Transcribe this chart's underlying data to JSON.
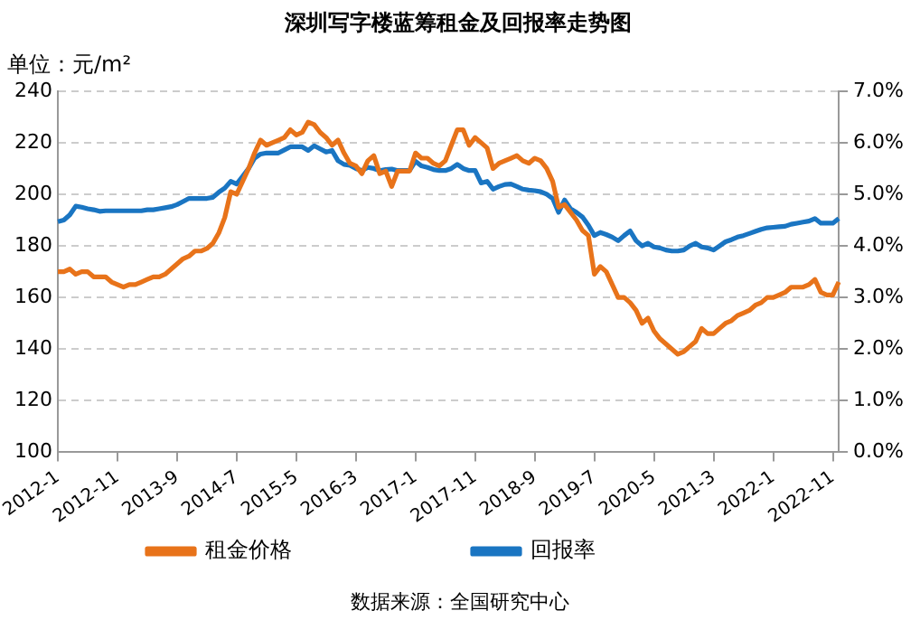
{
  "chart_data": {
    "type": "line",
    "title": "深圳写字楼蓝筹租金及回报率走势图",
    "ylabel": "单位：元/m²",
    "annotations": [
      "数据来源：全国研究中心"
    ],
    "categories": [
      "2012-1",
      null,
      null,
      null,
      null,
      null,
      null,
      null,
      null,
      null,
      "2012-11",
      null,
      null,
      null,
      null,
      null,
      null,
      null,
      null,
      null,
      "2013-9",
      null,
      null,
      null,
      null,
      null,
      null,
      null,
      null,
      null,
      "2014-7",
      null,
      null,
      null,
      null,
      null,
      null,
      null,
      null,
      null,
      "2015-5",
      null,
      null,
      null,
      null,
      null,
      null,
      null,
      null,
      null,
      "2016-3",
      null,
      null,
      null,
      null,
      null,
      null,
      null,
      null,
      null,
      "2017-1",
      null,
      null,
      null,
      null,
      null,
      null,
      null,
      null,
      null,
      "2017-11",
      null,
      null,
      null,
      null,
      null,
      null,
      null,
      null,
      null,
      "2018-9",
      null,
      null,
      null,
      null,
      null,
      null,
      null,
      null,
      null,
      "2019-7",
      null,
      null,
      null,
      null,
      null,
      null,
      null,
      null,
      null,
      "2020-5",
      null,
      null,
      null,
      null,
      null,
      null,
      null,
      null,
      null,
      "2021-3",
      null,
      null,
      null,
      null,
      null,
      null,
      null,
      null,
      null,
      "2022-1",
      null,
      null,
      null,
      null,
      null,
      null,
      null,
      null,
      null,
      "2022-11",
      null
    ],
    "series": [
      {
        "name": "租金价格",
        "color": "#e8731a",
        "values": [
          170,
          170,
          171,
          169,
          170,
          170,
          168,
          168,
          168,
          166,
          165,
          164,
          165,
          165,
          166,
          167,
          168,
          168,
          169,
          171,
          173,
          175,
          176,
          178,
          178,
          179,
          181,
          185,
          191,
          201,
          200,
          205,
          210,
          216,
          221,
          219,
          220,
          221,
          222,
          225,
          223,
          224,
          228,
          227,
          224,
          222,
          219,
          221,
          216,
          212,
          211,
          208,
          213,
          215,
          208,
          209,
          203,
          209,
          209,
          209,
          216,
          214,
          214,
          212,
          211,
          213,
          219,
          225,
          225,
          219,
          222,
          220,
          218,
          210,
          212,
          213,
          214,
          215,
          213,
          212,
          214,
          213,
          210,
          205,
          195,
          196,
          193,
          190,
          186,
          184,
          169,
          172,
          170,
          165,
          160,
          160,
          158,
          155,
          150,
          152,
          147,
          144,
          142,
          140,
          138,
          139,
          141,
          143,
          148,
          146,
          146,
          148,
          150,
          151,
          153,
          154,
          155,
          157,
          158,
          160,
          160,
          161,
          162,
          164,
          164,
          164,
          165,
          167,
          162,
          161,
          161,
          166
        ]
      },
      {
        "name": "回报率",
        "color": "#1a75c2",
        "axis": "y2",
        "values": [
          4.47,
          4.5,
          4.6,
          4.77,
          4.75,
          4.72,
          4.7,
          4.67,
          4.68,
          4.68,
          4.68,
          4.68,
          4.68,
          4.68,
          4.68,
          4.7,
          4.7,
          4.72,
          4.74,
          4.76,
          4.8,
          4.86,
          4.92,
          4.92,
          4.92,
          4.92,
          4.94,
          5.04,
          5.12,
          5.25,
          5.2,
          5.35,
          5.5,
          5.7,
          5.78,
          5.8,
          5.8,
          5.8,
          5.86,
          5.92,
          5.92,
          5.92,
          5.85,
          5.94,
          5.88,
          5.82,
          5.85,
          5.65,
          5.58,
          5.56,
          5.5,
          5.46,
          5.52,
          5.5,
          5.46,
          5.48,
          5.49,
          5.46,
          5.46,
          5.46,
          5.64,
          5.55,
          5.52,
          5.48,
          5.46,
          5.46,
          5.5,
          5.58,
          5.5,
          5.46,
          5.46,
          5.22,
          5.25,
          5.1,
          5.15,
          5.19,
          5.2,
          5.15,
          5.1,
          5.08,
          5.07,
          5.05,
          5.0,
          4.92,
          4.65,
          4.89,
          4.72,
          4.65,
          4.56,
          4.4,
          4.2,
          4.26,
          4.22,
          4.17,
          4.1,
          4.2,
          4.29,
          4.1,
          4.0,
          4.05,
          3.98,
          3.96,
          3.92,
          3.9,
          3.9,
          3.92,
          4.0,
          4.05,
          3.98,
          3.96,
          3.92,
          4.0,
          4.08,
          4.12,
          4.17,
          4.2,
          4.24,
          4.28,
          4.32,
          4.35,
          4.36,
          4.37,
          4.38,
          4.42,
          4.44,
          4.46,
          4.48,
          4.53,
          4.44,
          4.44,
          4.44,
          4.53
        ]
      }
    ],
    "ylim": [
      100,
      240
    ],
    "yticks": [
      100,
      120,
      140,
      160,
      180,
      200,
      220,
      240
    ],
    "y2lim": [
      0,
      7
    ],
    "y2ticks": [
      {
        "value": 0,
        "label": "0.0%"
      },
      {
        "value": 1,
        "label": "1.0%"
      },
      {
        "value": 2,
        "label": "2.0%"
      },
      {
        "value": 3,
        "label": "3.0%"
      },
      {
        "value": 4,
        "label": "4.0%"
      },
      {
        "value": 5,
        "label": "5.0%"
      },
      {
        "value": 6,
        "label": "6.0%"
      },
      {
        "value": 7,
        "label": "7.0%"
      }
    ],
    "grid": "y",
    "legend": "bottom",
    "marker": "none",
    "line_style": "solid"
  }
}
